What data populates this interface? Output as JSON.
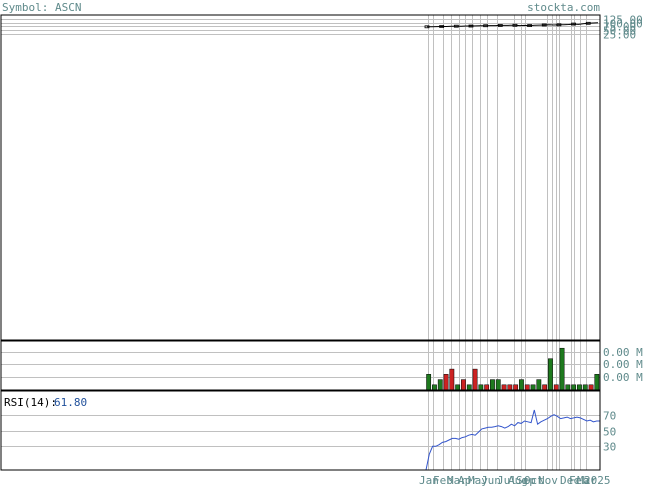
{
  "header": {
    "symbol_label": "Symbol: ASCN",
    "site": "stockta.com"
  },
  "colors": {
    "up_volume": "#1e7a1e",
    "down_volume": "#cc2222",
    "rsi_line": "#3355cc",
    "price_line": "#000000",
    "grid": "#c0c0c0",
    "axis_label": "#5f8a8b"
  },
  "chart_data": [
    {
      "type": "line",
      "name": "price",
      "y_ticks": [
        "125.00",
        "100.00",
        "75.00",
        "50.00",
        "25.00"
      ],
      "y_tick_values": [
        125,
        100,
        75,
        50,
        25
      ],
      "ylim": [
        -2000,
        150
      ],
      "values": [
        72,
        72,
        73,
        74,
        74,
        75,
        76,
        76,
        77,
        77,
        78,
        79,
        79,
        80,
        80,
        81,
        81,
        82,
        82,
        80,
        81,
        80,
        82,
        83,
        84,
        85,
        84,
        85,
        86,
        87,
        90,
        88,
        92,
        95,
        97,
        99
      ]
    },
    {
      "type": "bar",
      "name": "volume",
      "y_ticks": [
        "0.00 M",
        "0.00 M",
        "0.00 M"
      ],
      "values": [
        3,
        1,
        2,
        3,
        4,
        1,
        2,
        1,
        4,
        1,
        1,
        2,
        2,
        1,
        1,
        1,
        2,
        1,
        1,
        2,
        1,
        6,
        1,
        8,
        1,
        1,
        1,
        1,
        1,
        3
      ],
      "direction": [
        "up",
        "up",
        "up",
        "down",
        "down",
        "up",
        "down",
        "up",
        "down",
        "up",
        "down",
        "up",
        "up",
        "down",
        "down",
        "down",
        "up",
        "down",
        "up",
        "up",
        "down",
        "up",
        "down",
        "up",
        "up",
        "up",
        "up",
        "up",
        "down",
        "up"
      ],
      "ylim": [
        0,
        9
      ]
    },
    {
      "type": "line",
      "name": "rsi",
      "label": "RSI(14):",
      "value_text": "61.80",
      "y_ticks": [
        "70",
        "50",
        "30"
      ],
      "y_tick_values": [
        70,
        50,
        30
      ],
      "ylim": [
        0,
        100
      ],
      "values": [
        0,
        20,
        30,
        30,
        32,
        35,
        36,
        38,
        40,
        40,
        39,
        41,
        42,
        44,
        45,
        44,
        48,
        52,
        53,
        54,
        54,
        55,
        56,
        55,
        53,
        55,
        58,
        56,
        60,
        59,
        62,
        61,
        60,
        76,
        58,
        61,
        63,
        65,
        68,
        70,
        68,
        65,
        66,
        67,
        65,
        66,
        67,
        66,
        64,
        62,
        63,
        61,
        62,
        62
      ]
    }
  ],
  "x_labels": [
    "Jan",
    "Feb",
    "Mar",
    "Apr",
    "May",
    "Jun",
    "Jul",
    "Aug",
    "Sep",
    "Oct",
    "Nov",
    "Dec",
    "Feb",
    "Mar",
    "2025"
  ]
}
